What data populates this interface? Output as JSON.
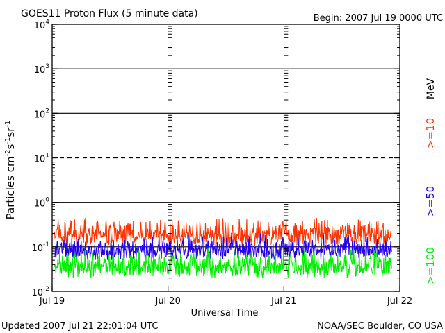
{
  "header": {
    "title": "GOES11 Proton Flux (5 minute data)",
    "begin": "Begin: 2007 Jul 19 0000 UTC"
  },
  "footer": {
    "updated": "Updated 2007 Jul 21 22:01:04 UTC",
    "credit": "NOAA/SEC Boulder, CO USA"
  },
  "axes": {
    "ylabel_main": "Particles cm",
    "ylabel_exp1": "-2",
    "ylabel_mid1": "s",
    "ylabel_exp2": "-1",
    "ylabel_mid2": "sr",
    "ylabel_exp3": "-1",
    "xlabel": "Universal Time",
    "y_ticks": [
      {
        "base": "10",
        "exp": "-2",
        "value": 0.01
      },
      {
        "base": "10",
        "exp": "-1",
        "value": 0.1
      },
      {
        "base": "10",
        "exp": "0",
        "value": 1
      },
      {
        "base": "10",
        "exp": "1",
        "value": 10
      },
      {
        "base": "10",
        "exp": "2",
        "value": 100
      },
      {
        "base": "10",
        "exp": "3",
        "value": 1000
      },
      {
        "base": "10",
        "exp": "4",
        "value": 10000
      }
    ],
    "x_ticks": [
      {
        "label": "Jul 19",
        "day": 0
      },
      {
        "label": "Jul 20",
        "day": 1
      },
      {
        "label": "Jul 21",
        "day": 2
      },
      {
        "label": "Jul 22",
        "day": 3
      }
    ]
  },
  "legend": {
    "mev_label": "MeV",
    "items": [
      {
        "label": ">=10",
        "color": "#ff3300"
      },
      {
        "label": ">=50",
        "color": "#2200ee"
      },
      {
        "label": ">=100",
        "color": "#00ee00"
      }
    ]
  },
  "chart_data": {
    "type": "line",
    "title": "GOES11 Proton Flux (5 minute data)",
    "xlabel": "Universal Time",
    "ylabel": "Particles cm-2 s-1 sr-1",
    "y_scale": "log",
    "ylim": [
      0.01,
      10000
    ],
    "x_unit": "days since 2007 Jul 19 0000 UTC",
    "xlim": [
      0,
      3
    ],
    "categories": [
      "Jul 19",
      "Jul 20",
      "Jul 21",
      "Jul 22"
    ],
    "grid": "horizontal lines at each decade; solid at 1e0, 1e2, 1e3 and 1e-1; dashed at 1e1",
    "legend_placement": "right, vertical",
    "series": [
      {
        "name": ">=10 MeV",
        "color": "#ff3300",
        "typical_range": [
          0.1,
          0.5
        ],
        "median": 0.2
      },
      {
        "name": ">=50 MeV",
        "color": "#2200ee",
        "typical_range": [
          0.05,
          0.2
        ],
        "median": 0.1
      },
      {
        "name": ">=100 MeV",
        "color": "#00ee00",
        "typical_range": [
          0.02,
          0.1
        ],
        "median": 0.05
      }
    ]
  }
}
